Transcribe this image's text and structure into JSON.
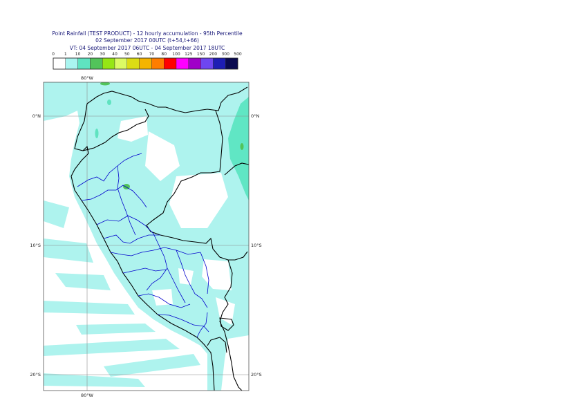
{
  "title": {
    "line1": "Point Rainfall (TEST PRODUCT) - 12 hourly accumulation - 95th Percentile",
    "line2": "02 September 2017 00UTC (t+54,t+66)",
    "line3": "VT: 04 September 2017 06UTC - 04 September 2017 18UTC"
  },
  "legend": {
    "ticks": [
      "0",
      "1",
      "10",
      "20",
      "30",
      "40",
      "50",
      "60",
      "70",
      "80",
      "100",
      "125",
      "150",
      "200",
      "300",
      "500"
    ],
    "colors": [
      "#ffffff",
      "#aaf5f0",
      "#5fe3c0",
      "#52c45a",
      "#96e614",
      "#dcfa64",
      "#dcdc14",
      "#f5b400",
      "#ff7d00",
      "#ff0000",
      "#ff00ff",
      "#a000c8",
      "#6e46f0",
      "#1e1eb4",
      "#0a0a50"
    ]
  },
  "map": {
    "lon_labels": [
      "80°W",
      "80°W"
    ],
    "lat_labels": [
      "0°N",
      "0°N",
      "10°S",
      "10°S",
      "20°S",
      "20°S"
    ],
    "colors": {
      "sea": "#60e6c4",
      "land_light": "#aef3ee",
      "white": "#ffffff",
      "country_border": "#000000",
      "region_border": "#0000cc",
      "grid": "#8a8a8a"
    }
  }
}
